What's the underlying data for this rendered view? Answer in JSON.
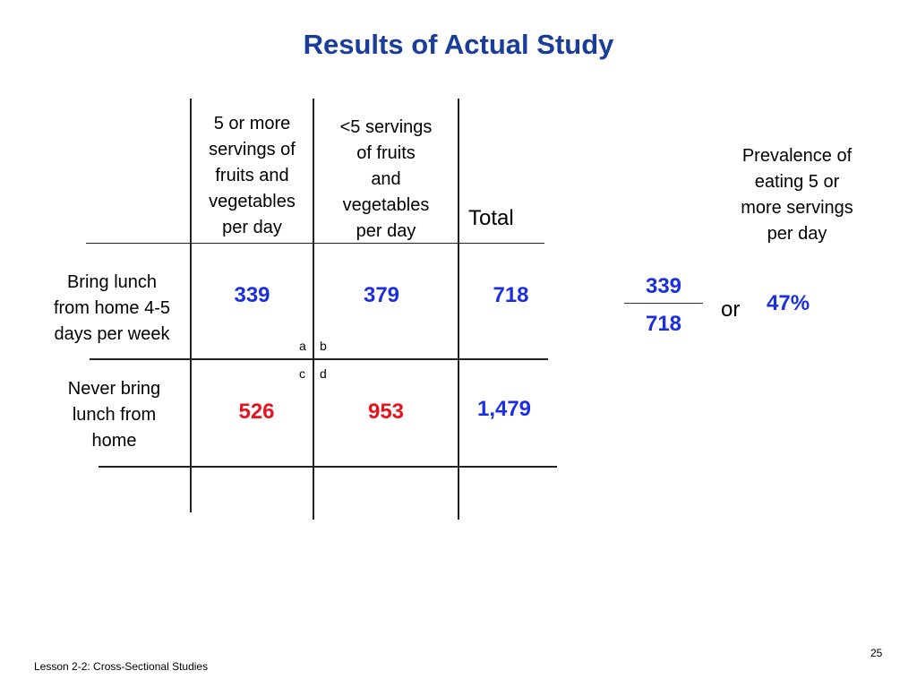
{
  "title": "Results of Actual Study",
  "table": {
    "col1_header_lines": [
      "5 or more",
      "servings of",
      "fruits and",
      "vegetables",
      "per day"
    ],
    "col2_header_lines": [
      "<5 servings",
      "of fruits",
      "and",
      "vegetables",
      "per day"
    ],
    "total_header": "Total",
    "row1_label_lines": [
      "Bring lunch",
      "from home 4-5",
      "days per week"
    ],
    "row2_label_lines": [
      "Never bring",
      "lunch from",
      "home"
    ],
    "row1": {
      "a": "339",
      "b": "379",
      "total": "718"
    },
    "row2": {
      "c": "526",
      "d": "953",
      "total": "1,479"
    },
    "letters": {
      "a": "a",
      "b": "b",
      "c": "c",
      "d": "d"
    }
  },
  "prevalence": {
    "label_lines": [
      "Prevalence  of",
      "eating 5 or",
      "more servings",
      "per day"
    ],
    "numerator": "339",
    "denominator": "718",
    "or_text": "or",
    "percent": "47%"
  },
  "colors": {
    "title": "#1a3d99",
    "blue_value": "#1c2fe0",
    "red_value": "#e6141e"
  },
  "footer": {
    "left": "Lesson 2-2: Cross-Sectional Studies",
    "page_number": "25"
  }
}
